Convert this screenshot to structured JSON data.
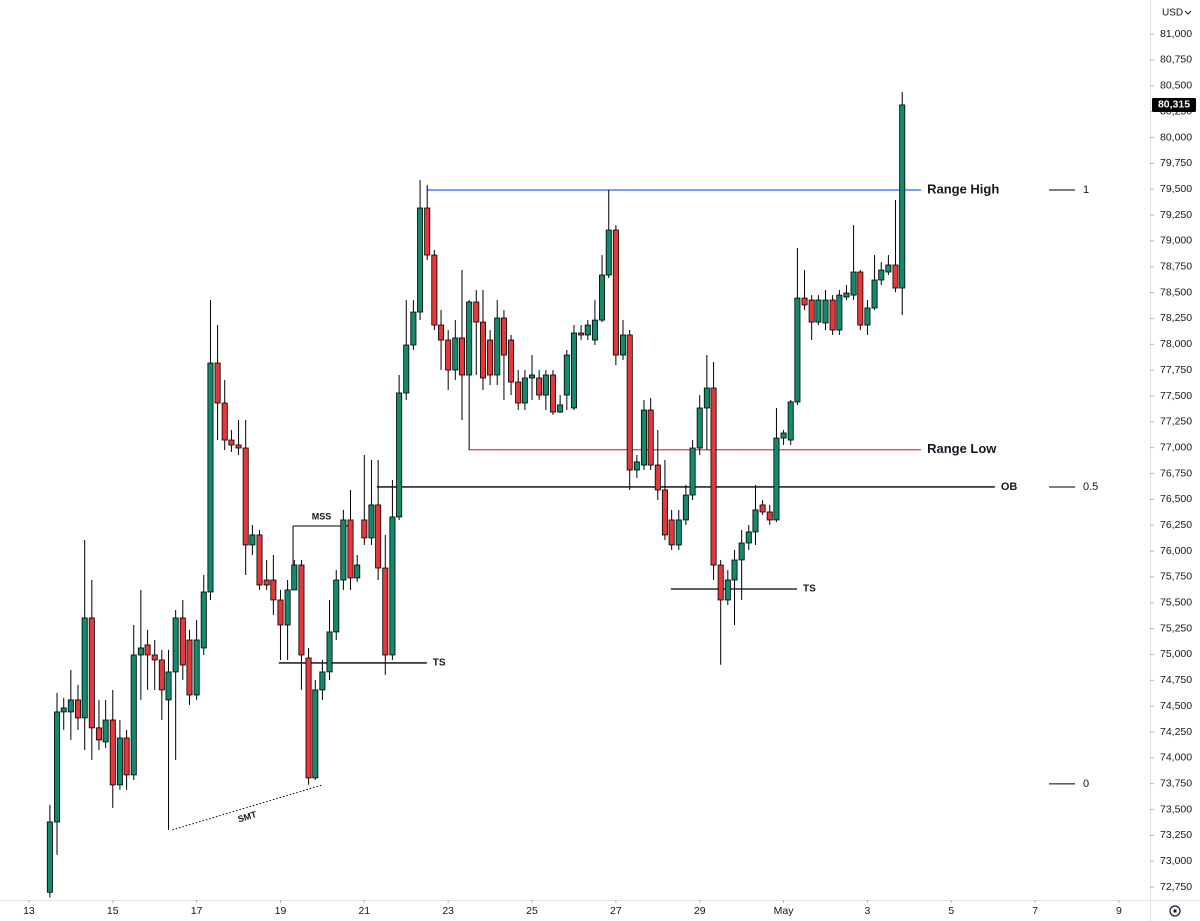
{
  "chart_data": {
    "type": "candlestick",
    "currency": "USD",
    "up_color": "#138a6b",
    "down_color": "#e5383b",
    "x": [
      13.5,
      13.67,
      13.83,
      14,
      14.17,
      14.33,
      14.5,
      14.67,
      14.83,
      15,
      15.17,
      15.33,
      15.5,
      15.67,
      15.83,
      16,
      16.17,
      16.33,
      16.5,
      16.67,
      16.83,
      17,
      17.17,
      17.33,
      17.5,
      17.67,
      17.83,
      18,
      18.17,
      18.33,
      18.5,
      18.67,
      18.83,
      19,
      19.17,
      19.33,
      19.5,
      19.67,
      19.83,
      20,
      20.17,
      20.33,
      20.5,
      20.67,
      20.83,
      21,
      21.17,
      21.33,
      21.5,
      21.67,
      21.83,
      22,
      22.17,
      22.33,
      22.5,
      22.67,
      22.83,
      23,
      23.17,
      23.33,
      23.5,
      23.67,
      23.83,
      24,
      24.17,
      24.33,
      24.5,
      24.67,
      24.83,
      25,
      25.17,
      25.33,
      25.5,
      25.67,
      25.83,
      26,
      26.17,
      26.33,
      26.5,
      26.67,
      26.83,
      27,
      27.17,
      27.33,
      27.5,
      27.67,
      27.83,
      28,
      28.17,
      28.33,
      28.5,
      28.67,
      28.83,
      29,
      29.17,
      29.33,
      29.5,
      29.67,
      29.83,
      30,
      30.17,
      30.33,
      30.5,
      30.67,
      30.83,
      31,
      31.17,
      31.33,
      31.5,
      31.67,
      31.83,
      32,
      32.17,
      32.33,
      32.5,
      32.67,
      32.83,
      33,
      33.17,
      33.33,
      33.5,
      33.67,
      33.83
    ],
    "open": [
      72700,
      73380,
      74444,
      74444,
      74560,
      74386,
      75353,
      74290,
      74154,
      74366,
      73738,
      74192,
      73835,
      74995,
      75092,
      74995,
      74947,
      74560,
      74831,
      75353,
      75140,
      74608,
      75063,
      75604,
      77819,
      77432,
      77074,
      77026,
      76997,
      76059,
      76156,
      75720,
      75720,
      75527,
      75285,
      75624,
      75865,
      74966,
      73806,
      74657,
      74831,
      75218,
      75720,
      76301,
      75740,
      76301,
      76127,
      76446,
      75836,
      74995,
      76330,
      77529,
      77993,
      78312,
      79318,
      78863,
      78186,
      78041,
      77751,
      78061,
      77703,
      78409,
      78215,
      78041,
      77703,
      78254,
      78041,
      77635,
      77432,
      77674,
      77674,
      77509,
      77703,
      77345,
      77509,
      77384,
      78109,
      78090,
      78041,
      78234,
      78670,
      79105,
      77896,
      78090,
      76784,
      76832,
      77364,
      76832,
      76591,
      76301,
      76059,
      76301,
      76542,
      76997,
      77384,
      77577,
      75865,
      75527,
      75720,
      75914,
      76078,
      76185,
      76446,
      76378,
      76301,
      77093,
      77074,
      77442,
      78447,
      78428,
      78215,
      78206,
      78428,
      78138,
      78457,
      78476,
      78699,
      78186,
      78351,
      78622,
      78699,
      78767,
      78544
    ],
    "high": [
      73545,
      74628,
      74580,
      74850,
      74705,
      76107,
      75720,
      74560,
      74560,
      74657,
      74366,
      74270,
      75285,
      75624,
      75237,
      75140,
      75044,
      75044,
      75430,
      75527,
      75237,
      75334,
      75769,
      78428,
      78186,
      77654,
      77171,
      77268,
      77268,
      76252,
      76204,
      75914,
      75962,
      75624,
      75720,
      75914,
      75914,
      75063,
      74753,
      74947,
      75527,
      75817,
      76398,
      76591,
      75962,
      76929,
      76881,
      76881,
      76156,
      76687,
      77703,
      78428,
      78428,
      79588,
      79540,
      78912,
      78331,
      78138,
      78234,
      78718,
      78428,
      78525,
      78525,
      78138,
      78428,
      78331,
      78090,
      77751,
      77751,
      77896,
      77751,
      77751,
      77751,
      77509,
      77945,
      78186,
      78186,
      78234,
      78428,
      78863,
      79492,
      79153,
      78234,
      78138,
      76929,
      77461,
      77480,
      77171,
      76881,
      76398,
      76398,
      76639,
      77074,
      77509,
      77896,
      77829,
      75914,
      75817,
      76010,
      76204,
      76252,
      76639,
      76494,
      76446,
      77384,
      77171,
      77461,
      78931,
      78718,
      78476,
      78476,
      78525,
      78476,
      78525,
      78573,
      79153,
      78718,
      78428,
      78863,
      78795,
      78863,
      79395,
      80439
    ],
    "low": [
      72650,
      73061,
      74270,
      74173,
      74270,
      74076,
      73980,
      74076,
      74096,
      73516,
      73690,
      73690,
      73786,
      74560,
      74657,
      74657,
      74366,
      73303,
      73980,
      74753,
      74512,
      74560,
      74995,
      75527,
      77074,
      76977,
      76958,
      76929,
      75769,
      75962,
      75624,
      75624,
      75382,
      74947,
      74947,
      75672,
      74657,
      73740,
      73786,
      74560,
      74753,
      75140,
      75624,
      75624,
      75701,
      76059,
      76059,
      75720,
      74802,
      74947,
      76301,
      77461,
      77945,
      78235,
      78815,
      78138,
      77751,
      77558,
      77654,
      77268,
      76977,
      77703,
      77558,
      77606,
      77606,
      77461,
      77509,
      77364,
      77364,
      77461,
      77461,
      77364,
      77316,
      77335,
      77364,
      77364,
      78041,
      78041,
      77993,
      78215,
      78641,
      77799,
      77848,
      76591,
      76707,
      76784,
      76784,
      76494,
      76107,
      76010,
      76010,
      76252,
      76494,
      76929,
      76977,
      75720,
      74900,
      75478,
      75285,
      75527,
      76010,
      76059,
      76349,
      76252,
      76281,
      77026,
      77026,
      77413,
      78331,
      78041,
      78186,
      78138,
      78090,
      78090,
      78428,
      78428,
      78138,
      78090,
      78331,
      78573,
      78670,
      78505,
      78283
    ],
    "close": [
      73380,
      74444,
      74483,
      74560,
      74386,
      75353,
      74290,
      74173,
      74366,
      73738,
      74192,
      73835,
      74995,
      75063,
      74995,
      74947,
      74657,
      74831,
      75353,
      74898,
      74608,
      75140,
      75604,
      77819,
      77432,
      77074,
      77026,
      76997,
      76059,
      76156,
      75672,
      75672,
      75527,
      75285,
      75624,
      75865,
      74995,
      73806,
      74657,
      74831,
      75218,
      75720,
      76301,
      75740,
      75865,
      76127,
      76446,
      75836,
      74995,
      76330,
      77529,
      77993,
      78312,
      79318,
      78863,
      78186,
      78041,
      77751,
      78061,
      77703,
      78409,
      78215,
      77674,
      77703,
      78254,
      77896,
      77635,
      77432,
      77674,
      77703,
      77509,
      77703,
      77345,
      77413,
      77896,
      78109,
      78090,
      78186,
      78234,
      78670,
      79105,
      77896,
      78090,
      76784,
      76862,
      77364,
      76832,
      76591,
      76156,
      76059,
      76301,
      76542,
      76997,
      77384,
      77577,
      75865,
      75527,
      75720,
      75914,
      76078,
      76185,
      76398,
      76378,
      76301,
      77093,
      77142,
      77442,
      78447,
      78380,
      78215,
      78428,
      78428,
      78138,
      78476,
      78496,
      78699,
      78186,
      78351,
      78622,
      78718,
      78767,
      78544,
      80315
    ],
    "xlim": [
      12.31,
      39.74
    ],
    "ylim": [
      72625,
      81330
    ],
    "xticks": [
      13,
      15,
      17,
      19,
      21,
      23,
      25,
      27,
      29,
      {
        "value": 31,
        "label": "May"
      },
      {
        "value": 33,
        "label": "3"
      },
      {
        "value": 35,
        "label": "5"
      },
      {
        "value": 37,
        "label": "7"
      },
      {
        "value": 39,
        "label": "9"
      }
    ],
    "yticks": [
      {
        "value": 72750,
        "label": "72,750"
      },
      {
        "value": 73000,
        "label": "73,000"
      },
      {
        "value": 73250,
        "label": "73,250"
      },
      {
        "value": 73500,
        "label": "73,500"
      },
      {
        "value": 73750,
        "label": "73,750"
      },
      {
        "value": 74000,
        "label": "74,000"
      },
      {
        "value": 74250,
        "label": "74,250"
      },
      {
        "value": 74500,
        "label": "74,500"
      },
      {
        "value": 74750,
        "label": "74,750"
      },
      {
        "value": 75000,
        "label": "75,000"
      },
      {
        "value": 75250,
        "label": "75,250"
      },
      {
        "value": 75500,
        "label": "75,500"
      },
      {
        "value": 75750,
        "label": "75,750"
      },
      {
        "value": 76000,
        "label": "76,000"
      },
      {
        "value": 76250,
        "label": "76,250"
      },
      {
        "value": 76500,
        "label": "76,500"
      },
      {
        "value": 76750,
        "label": "76,750"
      },
      {
        "value": 77000,
        "label": "77,000"
      },
      {
        "value": 77250,
        "label": "77,250"
      },
      {
        "value": 77500,
        "label": "77,500"
      },
      {
        "value": 77750,
        "label": "77,750"
      },
      {
        "value": 78000,
        "label": "78,000"
      },
      {
        "value": 78250,
        "label": "78,250"
      },
      {
        "value": 78500,
        "label": "78,500"
      },
      {
        "value": 78750,
        "label": "78,750"
      },
      {
        "value": 79000,
        "label": "79,000"
      },
      {
        "value": 79250,
        "label": "79,250"
      },
      {
        "value": 79500,
        "label": "79,500"
      },
      {
        "value": 79750,
        "label": "79,750"
      },
      {
        "value": 80000,
        "label": "80,000"
      },
      {
        "value": 80250,
        "label": "80,250"
      },
      {
        "value": 80500,
        "label": "80,500"
      },
      {
        "value": 80750,
        "label": "80,750"
      },
      {
        "value": 81000,
        "label": "81,000"
      }
    ],
    "last_price": {
      "value": 80315,
      "label": "80,315"
    },
    "levels": [
      {
        "label": "Range High",
        "price": 79492,
        "x": [
          22.49,
          34.28
        ],
        "color": "#2962ff",
        "size": "large"
      },
      {
        "label": "Range Low",
        "price": 76980,
        "x": [
          23.5,
          34.28
        ],
        "color": "#f23645",
        "size": "large"
      },
      {
        "label": "OB",
        "price": 76620,
        "x": [
          21.3,
          36.04
        ],
        "color": "#000000",
        "size": "medium"
      },
      {
        "label": "TS",
        "price": 74918,
        "x": [
          18.96,
          22.49
        ],
        "color": "#000000",
        "size": "small"
      },
      {
        "label": "TS",
        "price": 75633,
        "x": [
          28.31,
          31.32
        ],
        "color": "#000000",
        "size": "small"
      }
    ],
    "mss": {
      "label": "MSS",
      "price": 76243,
      "x": [
        19.3,
        20.66
      ],
      "drop_to": 75865
    },
    "smt": {
      "label": "SMT",
      "from": [
        16.42,
        73303
      ],
      "to": [
        20.0,
        73738
      ]
    },
    "fib": [
      {
        "level": 1,
        "price": 79492
      },
      {
        "level": 0.5,
        "price": 76620
      },
      {
        "level": 0,
        "price": 73748
      }
    ]
  }
}
